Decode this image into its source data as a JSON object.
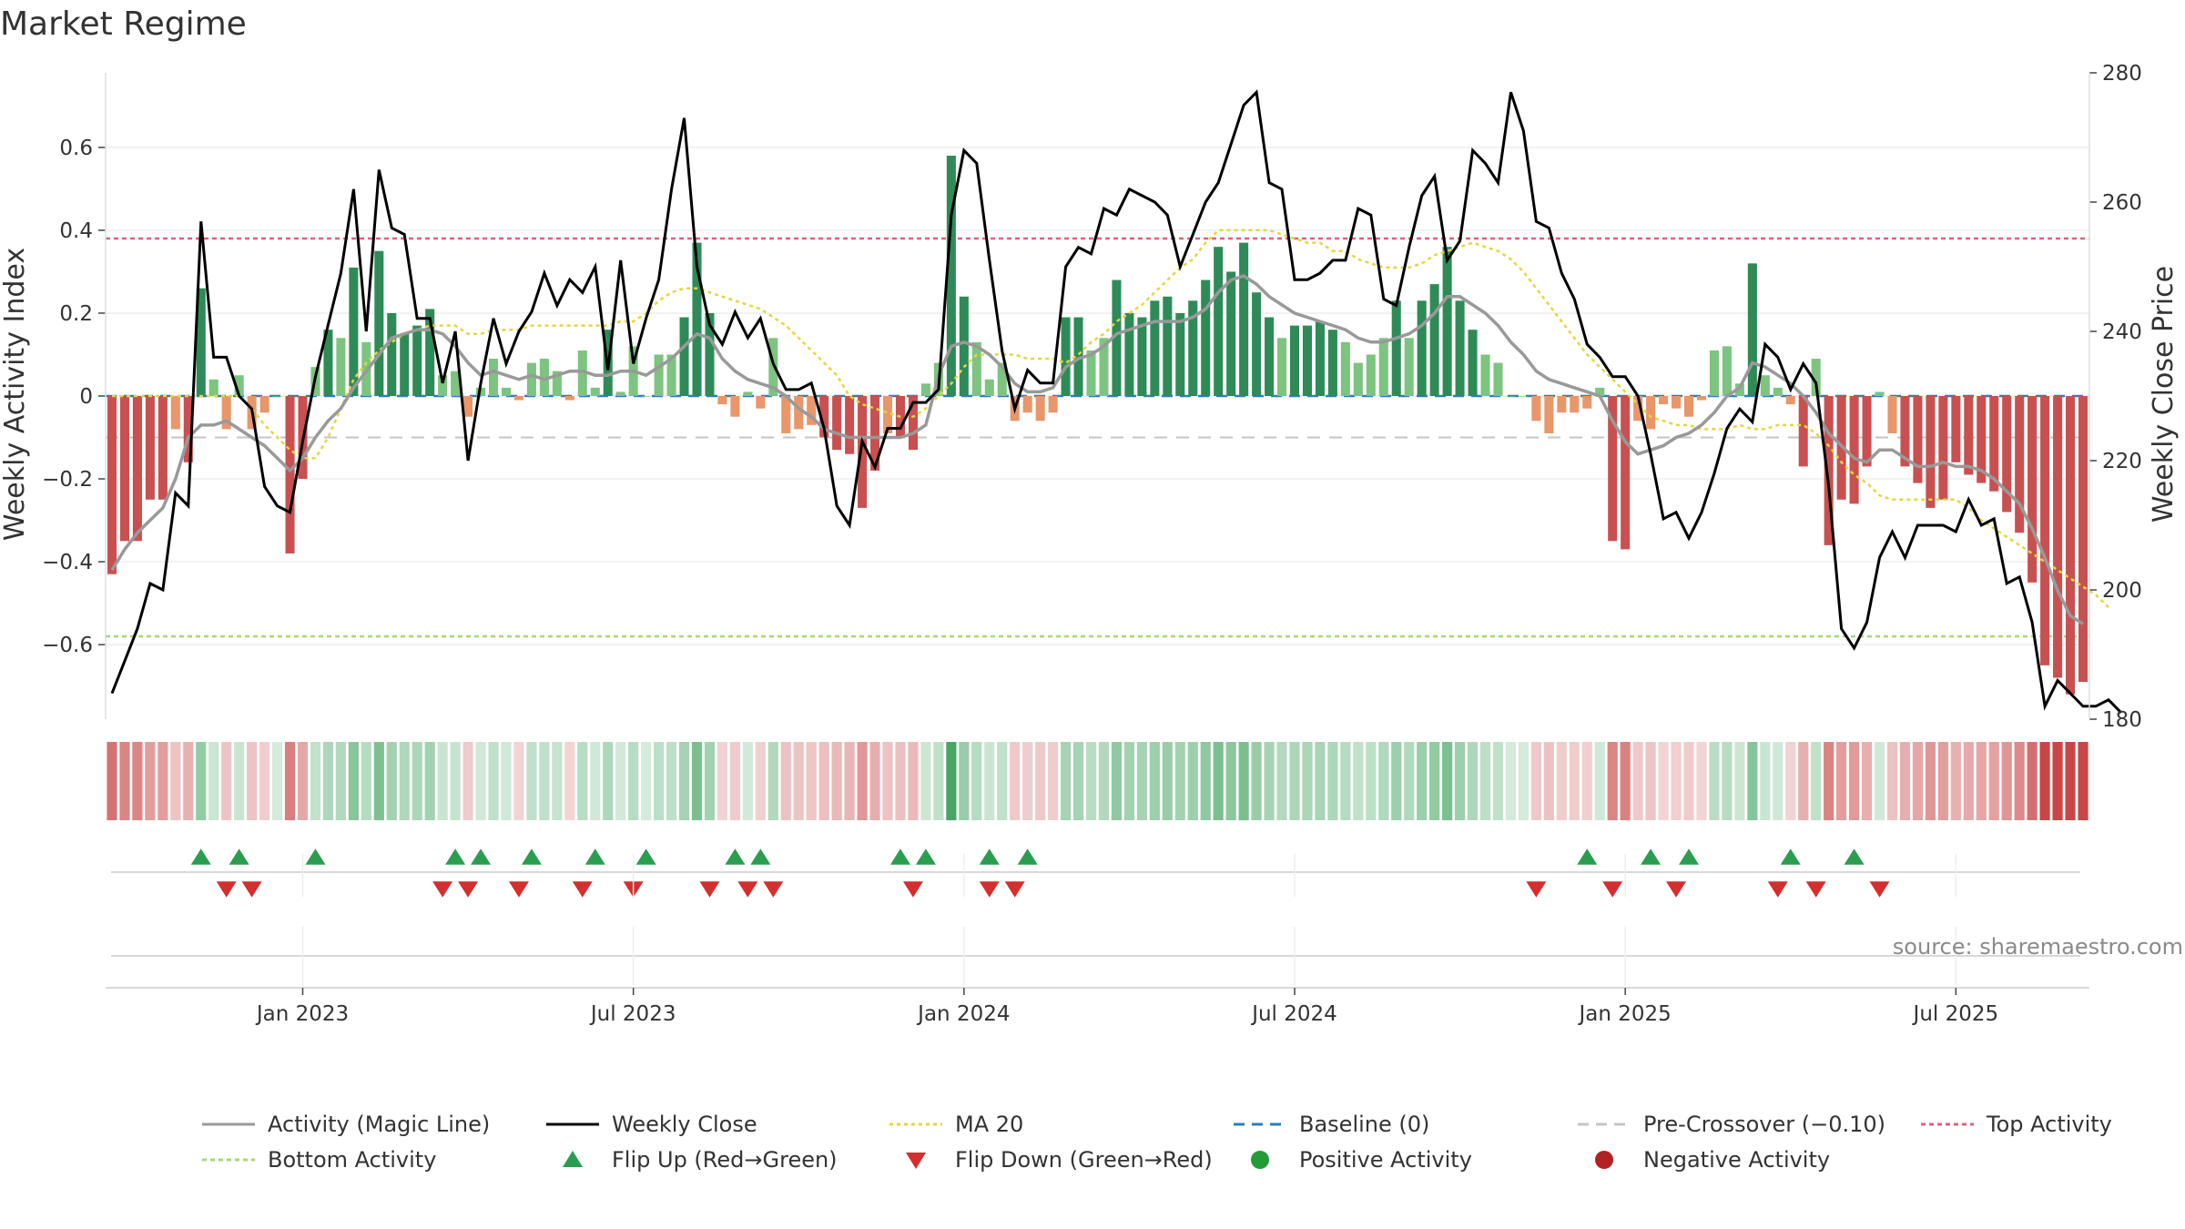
{
  "chart_data": {
    "type": "bar",
    "title": "Market Regime",
    "ylabel_left": "Weekly Activity Index",
    "ylabel_right": "Weekly Close Price",
    "left_ylim": [
      -0.78,
      0.78
    ],
    "right_ylim": [
      180,
      280
    ],
    "left_ticks": [
      0.6,
      0.4,
      0.2,
      0,
      -0.2,
      -0.4,
      -0.6
    ],
    "left_tick_labels": [
      "0.6",
      "0.4",
      "0.2",
      "0",
      "−0.2",
      "−0.4",
      "−0.6"
    ],
    "right_ticks": [
      280,
      260,
      240,
      220,
      200,
      180
    ],
    "right_tick_labels": [
      "280",
      "260",
      "240",
      "220",
      "200",
      "180"
    ],
    "x_ticks": [
      {
        "week": 15,
        "label": "Jan 2023"
      },
      {
        "week": 41,
        "label": "Jul 2023"
      },
      {
        "week": 67,
        "label": "Jan 2024"
      },
      {
        "week": 93,
        "label": "Jul 2024"
      },
      {
        "week": 119,
        "label": "Jan 2025"
      },
      {
        "week": 145,
        "label": "Jul 2025"
      }
    ],
    "thresholds": {
      "top": 0.38,
      "bottom": -0.58,
      "pre_crossover": -0.1,
      "baseline": 0
    },
    "activity": [
      -0.43,
      -0.35,
      -0.35,
      -0.25,
      -0.25,
      -0.08,
      -0.16,
      0.26,
      0.04,
      -0.08,
      0.05,
      -0.08,
      -0.04,
      0.0,
      -0.38,
      -0.2,
      0.07,
      0.16,
      0.14,
      0.31,
      0.13,
      0.35,
      0.2,
      0.15,
      0.17,
      0.21,
      0.05,
      0.06,
      -0.05,
      0.02,
      0.09,
      0.02,
      -0.01,
      0.08,
      0.09,
      0.06,
      -0.01,
      0.11,
      0.02,
      0.16,
      0.01,
      0.12,
      0.0,
      0.1,
      0.1,
      0.19,
      0.37,
      0.2,
      -0.02,
      -0.05,
      0.01,
      -0.03,
      0.14,
      -0.09,
      -0.08,
      -0.07,
      -0.1,
      -0.13,
      -0.14,
      -0.27,
      -0.18,
      -0.09,
      -0.1,
      -0.13,
      0.03,
      0.08,
      0.58,
      0.24,
      0.13,
      0.04,
      0.08,
      -0.06,
      -0.04,
      -0.06,
      -0.04,
      0.19,
      0.19,
      0.11,
      0.14,
      0.28,
      0.2,
      0.19,
      0.23,
      0.24,
      0.2,
      0.23,
      0.28,
      0.36,
      0.3,
      0.37,
      0.25,
      0.19,
      0.14,
      0.17,
      0.17,
      0.18,
      0.16,
      0.13,
      0.08,
      0.1,
      0.14,
      0.23,
      0.14,
      0.23,
      0.27,
      0.36,
      0.23,
      0.16,
      0.1,
      0.08,
      0.0,
      0.0,
      -0.06,
      -0.09,
      -0.04,
      -0.04,
      -0.03,
      0.02,
      -0.35,
      -0.37,
      -0.06,
      -0.08,
      -0.02,
      -0.03,
      -0.05,
      -0.01,
      0.11,
      0.12,
      0.03,
      0.32,
      0.05,
      0.02,
      -0.02,
      -0.17,
      0.09,
      -0.36,
      -0.25,
      -0.26,
      -0.17,
      0.01,
      -0.09,
      -0.17,
      -0.21,
      -0.27,
      -0.25,
      -0.16,
      -0.19,
      -0.21,
      -0.23,
      -0.28,
      -0.33,
      -0.45,
      -0.65,
      -0.68,
      -0.72,
      -0.69
    ],
    "activity_magic_line": [
      -0.42,
      -0.37,
      -0.33,
      -0.3,
      -0.27,
      -0.2,
      -0.1,
      -0.07,
      -0.07,
      -0.06,
      -0.08,
      -0.1,
      -0.12,
      -0.15,
      -0.18,
      -0.15,
      -0.1,
      -0.06,
      -0.03,
      0.02,
      0.06,
      0.1,
      0.14,
      0.15,
      0.16,
      0.16,
      0.15,
      0.12,
      0.08,
      0.05,
      0.06,
      0.05,
      0.04,
      0.05,
      0.04,
      0.05,
      0.06,
      0.06,
      0.05,
      0.05,
      0.06,
      0.06,
      0.05,
      0.07,
      0.09,
      0.12,
      0.15,
      0.14,
      0.09,
      0.06,
      0.04,
      0.03,
      0.02,
      0.0,
      -0.03,
      -0.05,
      -0.08,
      -0.09,
      -0.1,
      -0.1,
      -0.1,
      -0.1,
      -0.1,
      -0.09,
      -0.07,
      0.05,
      0.12,
      0.13,
      0.12,
      0.1,
      0.07,
      0.03,
      0.01,
      0.01,
      0.02,
      0.07,
      0.09,
      0.1,
      0.12,
      0.15,
      0.16,
      0.17,
      0.18,
      0.18,
      0.18,
      0.19,
      0.21,
      0.25,
      0.28,
      0.29,
      0.27,
      0.24,
      0.22,
      0.2,
      0.19,
      0.18,
      0.17,
      0.16,
      0.14,
      0.13,
      0.13,
      0.14,
      0.15,
      0.17,
      0.2,
      0.24,
      0.24,
      0.22,
      0.2,
      0.17,
      0.13,
      0.1,
      0.06,
      0.04,
      0.03,
      0.02,
      0.01,
      0.0,
      -0.06,
      -0.11,
      -0.14,
      -0.13,
      -0.12,
      -0.1,
      -0.09,
      -0.07,
      -0.04,
      0.0,
      0.02,
      0.08,
      0.07,
      0.05,
      0.03,
      0.0,
      -0.04,
      -0.09,
      -0.12,
      -0.15,
      -0.16,
      -0.13,
      -0.13,
      -0.15,
      -0.17,
      -0.17,
      -0.16,
      -0.17,
      -0.17,
      -0.18,
      -0.2,
      -0.23,
      -0.26,
      -0.32,
      -0.39,
      -0.47,
      -0.53,
      -0.55
    ],
    "weekly_close": [
      184,
      189,
      194,
      201,
      200,
      215,
      213,
      257,
      236,
      236,
      230,
      228,
      216,
      213,
      212,
      223,
      233,
      241,
      249,
      262,
      240,
      265,
      256,
      255,
      242,
      242,
      232,
      240,
      220,
      232,
      242,
      235,
      240,
      243,
      249,
      244,
      248,
      246,
      250,
      234,
      251,
      235,
      242,
      248,
      262,
      273,
      250,
      241,
      238,
      243,
      239,
      242,
      235,
      231,
      231,
      232,
      225,
      213,
      210,
      223,
      219,
      225,
      225,
      229,
      229,
      231,
      258,
      268,
      266,
      251,
      237,
      228,
      234,
      232,
      232,
      250,
      253,
      252,
      259,
      258,
      262,
      261,
      260,
      258,
      250,
      255,
      260,
      263,
      269,
      275,
      277,
      263,
      262,
      248,
      248,
      249,
      251,
      251,
      259,
      258,
      245,
      244,
      253,
      261,
      264,
      251,
      254,
      268,
      266,
      263,
      277,
      271,
      257,
      256,
      249,
      245,
      238,
      236,
      233,
      233,
      230,
      221,
      211,
      212,
      208,
      212,
      218,
      225,
      228,
      226,
      238,
      236,
      231,
      235,
      232,
      216,
      194,
      191,
      195,
      205,
      209,
      205,
      210,
      210,
      210,
      209,
      214,
      210,
      211,
      201,
      202,
      195,
      182,
      186,
      184,
      182,
      182,
      183,
      181
    ],
    "ma20": [
      0.0,
      0.0,
      0.0,
      0.0,
      0.0,
      0.0,
      0.0,
      0.0,
      0.0,
      0.0,
      0.0,
      -0.03,
      -0.07,
      -0.1,
      -0.13,
      -0.15,
      -0.15,
      -0.1,
      -0.03,
      0.04,
      0.08,
      0.11,
      0.13,
      0.15,
      0.16,
      0.17,
      0.17,
      0.17,
      0.15,
      0.15,
      0.16,
      0.16,
      0.16,
      0.17,
      0.17,
      0.17,
      0.17,
      0.17,
      0.17,
      0.17,
      0.18,
      0.18,
      0.2,
      0.23,
      0.25,
      0.26,
      0.26,
      0.25,
      0.24,
      0.23,
      0.22,
      0.21,
      0.19,
      0.17,
      0.14,
      0.11,
      0.08,
      0.05,
      0.0,
      -0.02,
      -0.03,
      -0.04,
      -0.05,
      -0.05,
      -0.03,
      0.0,
      0.03,
      0.07,
      0.1,
      0.1,
      0.1,
      0.1,
      0.09,
      0.09,
      0.09,
      0.08,
      0.1,
      0.13,
      0.15,
      0.18,
      0.2,
      0.22,
      0.25,
      0.28,
      0.31,
      0.33,
      0.37,
      0.4,
      0.4,
      0.4,
      0.4,
      0.4,
      0.39,
      0.38,
      0.37,
      0.37,
      0.35,
      0.35,
      0.33,
      0.32,
      0.31,
      0.31,
      0.31,
      0.32,
      0.34,
      0.35,
      0.36,
      0.37,
      0.36,
      0.35,
      0.33,
      0.3,
      0.26,
      0.22,
      0.18,
      0.14,
      0.1,
      0.07,
      0.04,
      0.01,
      -0.02,
      -0.05,
      -0.06,
      -0.07,
      -0.07,
      -0.08,
      -0.08,
      -0.08,
      -0.07,
      -0.08,
      -0.08,
      -0.07,
      -0.07,
      -0.07,
      -0.09,
      -0.12,
      -0.16,
      -0.19,
      -0.21,
      -0.24,
      -0.25,
      -0.25,
      -0.25,
      -0.25,
      -0.25,
      -0.25,
      -0.27,
      -0.3,
      -0.32,
      -0.34,
      -0.36,
      -0.38,
      -0.4,
      -0.42,
      -0.44,
      -0.46,
      -0.48,
      -0.51
    ],
    "flip_up_weeks": [
      7,
      10,
      16,
      27,
      29,
      33,
      38,
      42,
      49,
      51,
      62,
      64,
      69,
      72,
      116,
      121,
      124,
      132,
      137
    ],
    "flip_down_weeks": [
      9,
      11,
      26,
      28,
      32,
      37,
      41,
      47,
      50,
      52,
      63,
      69,
      71,
      112,
      118,
      123,
      131,
      134,
      139
    ],
    "legend": [
      {
        "label": "Activity (Magic Line)",
        "kind": "line",
        "color": "#999999",
        "dash": "none"
      },
      {
        "label": "Weekly Close",
        "kind": "line",
        "color": "#000000",
        "dash": "none"
      },
      {
        "label": "MA 20",
        "kind": "line",
        "color": "#e5d63c",
        "dash": "4,4"
      },
      {
        "label": "Baseline (0)",
        "kind": "line",
        "color": "#2c7fb8",
        "dash": "12,8"
      },
      {
        "label": "Pre-Crossover (−0.10)",
        "kind": "line",
        "color": "#c4c4c4",
        "dash": "12,8"
      },
      {
        "label": "Top Activity",
        "kind": "line",
        "color": "#e0607a",
        "dash": "5,4"
      },
      {
        "label": "Bottom Activity",
        "kind": "line",
        "color": "#a8d878",
        "dash": "5,4"
      },
      {
        "label": "Flip Up (Red→Green)",
        "kind": "tri-up",
        "color": "#2a9d50"
      },
      {
        "label": "Flip Down (Green→Red)",
        "kind": "tri-down",
        "color": "#d32f2f"
      },
      {
        "label": "Positive Activity",
        "kind": "dot",
        "color": "#239b37"
      },
      {
        "label": "Negative Activity",
        "kind": "dot",
        "color": "#b22222"
      }
    ],
    "source": "source: sharemaestro.com",
    "colors": {
      "strong_green": "#2e8b57",
      "light_green": "#7cc47f",
      "light_red": "#e8966a",
      "strong_red": "#c85050",
      "top_line": "#e0607a",
      "bottom_line": "#a8d878"
    }
  }
}
